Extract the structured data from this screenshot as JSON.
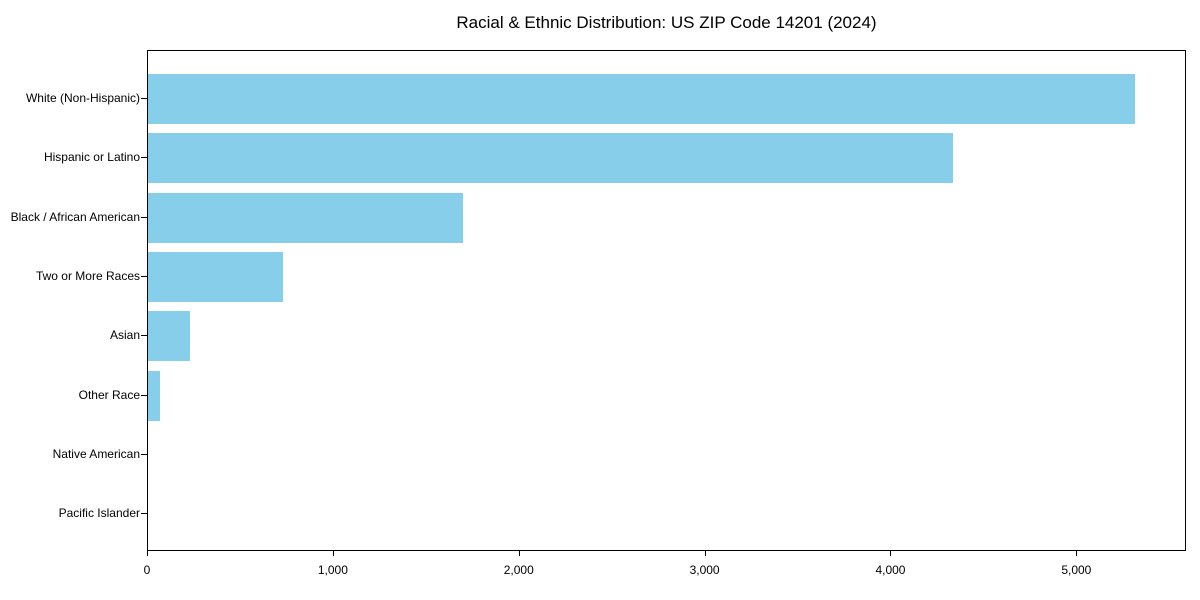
{
  "chart_data": {
    "type": "bar",
    "orientation": "horizontal",
    "title": "Racial & Ethnic Distribution: US ZIP Code 14201 (2024)",
    "categories": [
      "White (Non-Hispanic)",
      "Hispanic or Latino",
      "Black / African American",
      "Two or More Races",
      "Asian",
      "Other Race",
      "Native American",
      "Pacific Islander"
    ],
    "values": [
      5320,
      4340,
      1700,
      730,
      225,
      65,
      0,
      0
    ],
    "xlabel": "",
    "ylabel": "",
    "xlim": [
      0,
      5590
    ],
    "x_ticks": [
      0,
      1000,
      2000,
      3000,
      4000,
      5000
    ],
    "x_tick_labels": [
      "0",
      "1,000",
      "2,000",
      "3,000",
      "4,000",
      "5,000"
    ],
    "grid": false,
    "legend": false,
    "bar_color": "#87CEEB",
    "axis_color": "#000000",
    "background_color": "#FFFFFF"
  }
}
